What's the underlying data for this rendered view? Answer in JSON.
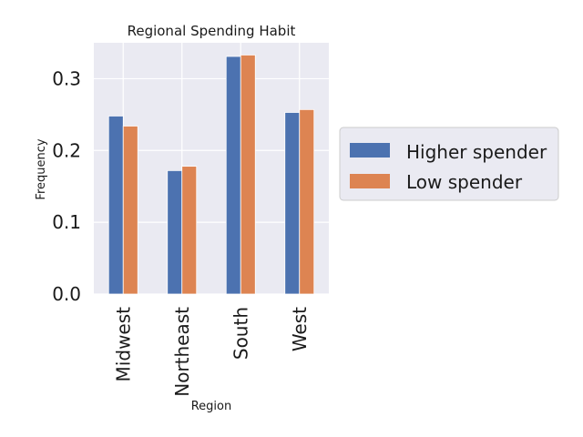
{
  "chart_data": {
    "type": "bar",
    "title": "Regional Spending Habit",
    "xlabel": "Region",
    "ylabel": "Frequency",
    "categories": [
      "Midwest",
      "Northeast",
      "South",
      "West"
    ],
    "series": [
      {
        "name": "Higher spender",
        "values": [
          0.248,
          0.172,
          0.331,
          0.253
        ]
      },
      {
        "name": "Low spender",
        "values": [
          0.234,
          0.178,
          0.333,
          0.257
        ]
      }
    ],
    "ylim": [
      0,
      0.35
    ],
    "yticks": [
      0.0,
      0.1,
      0.2,
      0.3
    ],
    "ytick_labels": [
      "0.0",
      "0.1",
      "0.2",
      "0.3"
    ],
    "grid": true,
    "legend_position": "right",
    "colors": {
      "plot_background": "#eaeaf2",
      "grid": "#ffffff",
      "series": [
        "#4c72b0",
        "#dd8452"
      ]
    }
  }
}
